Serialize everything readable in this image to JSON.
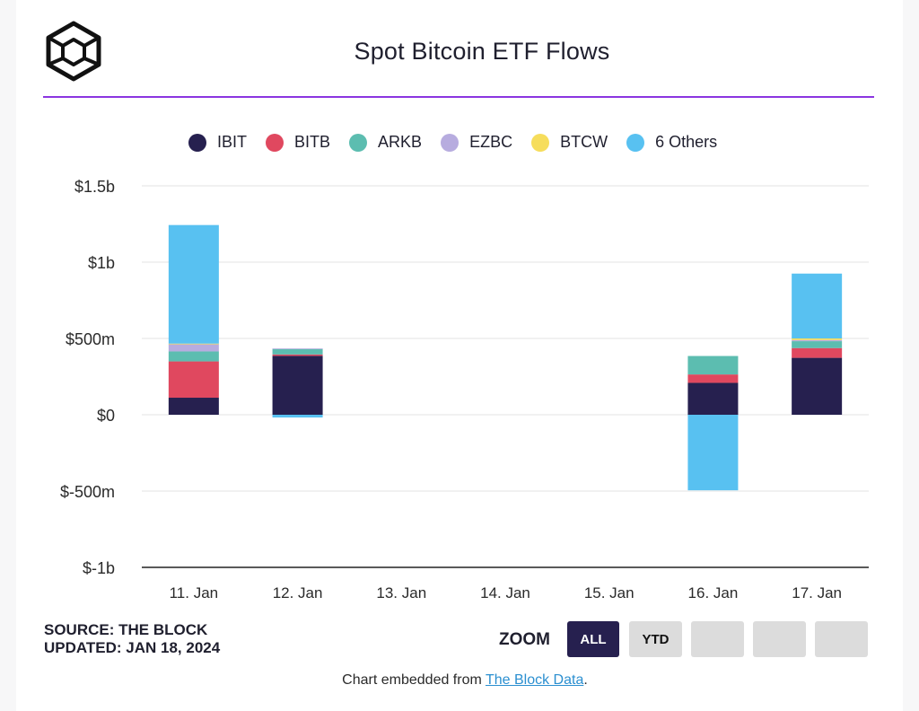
{
  "page": {
    "title": "Spot Bitcoin ETF Flows",
    "source_line": "SOURCE: THE BLOCK",
    "updated_line": "UPDATED: JAN 18, 2024",
    "zoom_label": "ZOOM",
    "zoom_buttons": [
      "ALL",
      "YTD",
      "",
      "",
      ""
    ],
    "zoom_active": "ALL",
    "embed_prefix": "Chart embedded from ",
    "embed_link": "The Block Data",
    "embed_suffix": "."
  },
  "colors": {
    "accent": "#8b35e0",
    "active_button": "#26204f",
    "inactive_button": "#dcdcdc",
    "grid": "#e3e3e3",
    "axis": "#222222"
  },
  "chart_data": {
    "type": "bar",
    "stacked": true,
    "title": "Spot Bitcoin ETF Flows",
    "categories": [
      "11. Jan",
      "12. Jan",
      "13. Jan",
      "14. Jan",
      "15. Jan",
      "16. Jan",
      "17. Jan"
    ],
    "y_tick_values": [
      1500,
      1000,
      500,
      0,
      -500,
      -1000
    ],
    "y_tick_labels": [
      "$1.5b",
      "$1b",
      "$500m",
      "$0",
      "$-500m",
      "$-1b"
    ],
    "ylim": [
      -1000,
      1500
    ],
    "units": "USD millions",
    "grid": true,
    "legend_position": "top",
    "series": [
      {
        "name": "IBIT",
        "color": "#26204f",
        "values": [
          111.7,
          386,
          0,
          0,
          0,
          209,
          373
        ]
      },
      {
        "name": "BITB",
        "color": "#e0485f",
        "values": [
          237.9,
          9,
          0,
          0,
          0,
          55,
          64
        ]
      },
      {
        "name": "ARKB",
        "color": "#5cbdb0",
        "values": [
          65.3,
          38,
          0,
          0,
          0,
          121,
          45
        ]
      },
      {
        "name": "EZBC",
        "color": "#b7acdf",
        "values": [
          50.1,
          1,
          0,
          0,
          0,
          0,
          8
        ]
      },
      {
        "name": "BTCW",
        "color": "#f6dd5c",
        "values": [
          1.1,
          0,
          0,
          0,
          0,
          0,
          10
        ]
      },
      {
        "name": "6 Others",
        "color": "#58c1f1",
        "values": [
          777,
          -18,
          0,
          0,
          0,
          -495,
          425
        ]
      }
    ]
  }
}
